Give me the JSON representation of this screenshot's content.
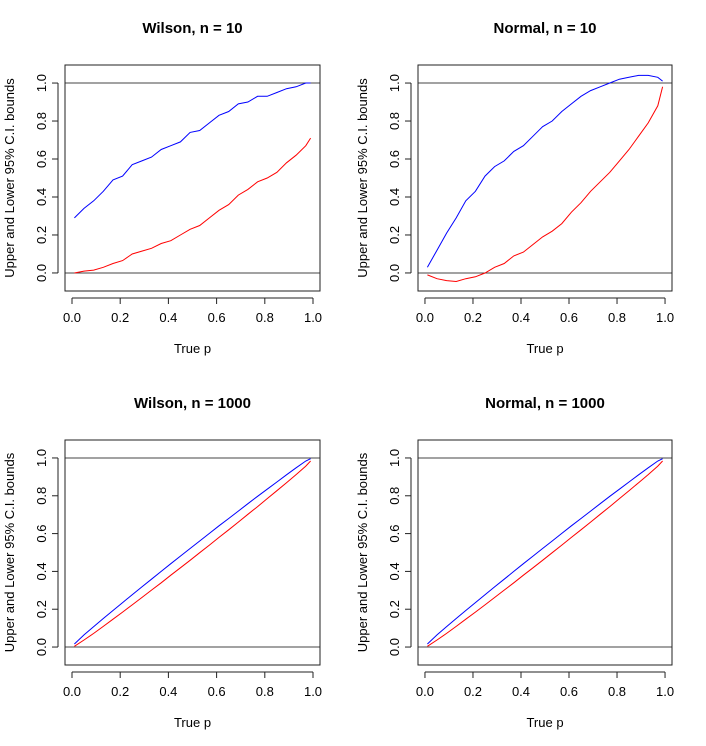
{
  "chart_data": [
    {
      "type": "line",
      "title": "Wilson, n = 10",
      "xlabel": "True p",
      "ylabel": "Upper and Lower 95% C.I. bounds",
      "xlim": [
        -0.029,
        1.029
      ],
      "ylim": [
        -0.095,
        1.095
      ],
      "xticks": [
        "0.0",
        "0.2",
        "0.4",
        "0.6",
        "0.8",
        "1.0"
      ],
      "yticks": [
        "0.0",
        "0.2",
        "0.4",
        "0.6",
        "0.8",
        "1.0"
      ],
      "hlines": [
        0,
        1
      ],
      "grid": false,
      "x": [
        0.01,
        0.05,
        0.09,
        0.13,
        0.17,
        0.21,
        0.25,
        0.29,
        0.33,
        0.37,
        0.41,
        0.45,
        0.49,
        0.53,
        0.57,
        0.61,
        0.65,
        0.69,
        0.73,
        0.77,
        0.81,
        0.85,
        0.89,
        0.93,
        0.97,
        0.99
      ],
      "series": [
        {
          "color": "#0000ff",
          "values": [
            0.29,
            0.34,
            0.38,
            0.43,
            0.49,
            0.51,
            0.57,
            0.59,
            0.61,
            0.65,
            0.67,
            0.69,
            0.74,
            0.75,
            0.79,
            0.83,
            0.85,
            0.89,
            0.9,
            0.93,
            0.93,
            0.95,
            0.97,
            0.98,
            1.0,
            1.0
          ]
        },
        {
          "color": "#ff0000",
          "values": [
            0.0,
            0.01,
            0.015,
            0.03,
            0.05,
            0.065,
            0.1,
            0.115,
            0.13,
            0.155,
            0.17,
            0.2,
            0.23,
            0.25,
            0.29,
            0.33,
            0.36,
            0.41,
            0.44,
            0.48,
            0.5,
            0.53,
            0.58,
            0.62,
            0.67,
            0.71
          ]
        }
      ]
    },
    {
      "type": "line",
      "title": "Normal, n = 10",
      "xlabel": "True p",
      "ylabel": "Upper and Lower 95% C.I. bounds",
      "xlim": [
        -0.029,
        1.029
      ],
      "ylim": [
        -0.095,
        1.095
      ],
      "xticks": [
        "0.0",
        "0.2",
        "0.4",
        "0.6",
        "0.8",
        "1.0"
      ],
      "yticks": [
        "0.0",
        "0.2",
        "0.4",
        "0.6",
        "0.8",
        "1.0"
      ],
      "hlines": [
        0,
        1
      ],
      "grid": false,
      "x": [
        0.01,
        0.05,
        0.09,
        0.13,
        0.17,
        0.21,
        0.25,
        0.29,
        0.33,
        0.37,
        0.41,
        0.45,
        0.49,
        0.53,
        0.57,
        0.61,
        0.65,
        0.69,
        0.73,
        0.77,
        0.81,
        0.85,
        0.89,
        0.93,
        0.97,
        0.99
      ],
      "series": [
        {
          "color": "#0000ff",
          "values": [
            0.03,
            0.12,
            0.21,
            0.29,
            0.38,
            0.43,
            0.51,
            0.56,
            0.59,
            0.64,
            0.67,
            0.72,
            0.77,
            0.8,
            0.85,
            0.89,
            0.93,
            0.96,
            0.98,
            1.0,
            1.02,
            1.03,
            1.04,
            1.04,
            1.03,
            1.01
          ]
        },
        {
          "color": "#ff0000",
          "values": [
            -0.01,
            -0.03,
            -0.04,
            -0.045,
            -0.03,
            -0.02,
            0.0,
            0.03,
            0.05,
            0.09,
            0.11,
            0.15,
            0.19,
            0.22,
            0.26,
            0.32,
            0.37,
            0.43,
            0.48,
            0.53,
            0.59,
            0.65,
            0.72,
            0.79,
            0.88,
            0.98
          ]
        }
      ]
    },
    {
      "type": "line",
      "title": "Wilson, n = 1000",
      "xlabel": "True p",
      "ylabel": "Upper and Lower 95% C.I. bounds",
      "xlim": [
        -0.029,
        1.029
      ],
      "ylim": [
        -0.095,
        1.095
      ],
      "xticks": [
        "0.0",
        "0.2",
        "0.4",
        "0.6",
        "0.8",
        "1.0"
      ],
      "yticks": [
        "0.0",
        "0.2",
        "0.4",
        "0.6",
        "0.8",
        "1.0"
      ],
      "hlines": [
        0,
        1
      ],
      "grid": false,
      "x": [
        0.01,
        0.05,
        0.09,
        0.13,
        0.17,
        0.21,
        0.25,
        0.29,
        0.33,
        0.37,
        0.41,
        0.45,
        0.49,
        0.53,
        0.57,
        0.61,
        0.65,
        0.69,
        0.73,
        0.77,
        0.81,
        0.85,
        0.89,
        0.93,
        0.97,
        0.99
      ],
      "series": [
        {
          "color": "#0000ff",
          "values": [
            0.016,
            0.064,
            0.108,
            0.151,
            0.193,
            0.235,
            0.277,
            0.318,
            0.359,
            0.4,
            0.441,
            0.481,
            0.521,
            0.561,
            0.601,
            0.641,
            0.68,
            0.719,
            0.758,
            0.797,
            0.835,
            0.873,
            0.911,
            0.948,
            0.984,
            0.996
          ]
        },
        {
          "color": "#ff0000",
          "values": [
            0.004,
            0.037,
            0.072,
            0.109,
            0.147,
            0.185,
            0.223,
            0.262,
            0.301,
            0.34,
            0.38,
            0.419,
            0.459,
            0.499,
            0.539,
            0.58,
            0.62,
            0.661,
            0.702,
            0.743,
            0.785,
            0.827,
            0.869,
            0.912,
            0.957,
            0.984
          ]
        }
      ]
    },
    {
      "type": "line",
      "title": "Normal, n = 1000",
      "xlabel": "True p",
      "ylabel": "Upper and Lower 95% C.I. bounds",
      "xlim": [
        -0.029,
        1.029
      ],
      "ylim": [
        -0.095,
        1.095
      ],
      "xticks": [
        "0.0",
        "0.2",
        "0.4",
        "0.6",
        "0.8",
        "1.0"
      ],
      "yticks": [
        "0.0",
        "0.2",
        "0.4",
        "0.6",
        "0.8",
        "1.0"
      ],
      "hlines": [
        0,
        1
      ],
      "grid": false,
      "x": [
        0.01,
        0.05,
        0.09,
        0.13,
        0.17,
        0.21,
        0.25,
        0.29,
        0.33,
        0.37,
        0.41,
        0.45,
        0.49,
        0.53,
        0.57,
        0.61,
        0.65,
        0.69,
        0.73,
        0.77,
        0.81,
        0.85,
        0.89,
        0.93,
        0.97,
        0.99
      ],
      "series": [
        {
          "color": "#0000ff",
          "values": [
            0.016,
            0.064,
            0.108,
            0.151,
            0.193,
            0.235,
            0.277,
            0.318,
            0.359,
            0.4,
            0.441,
            0.481,
            0.521,
            0.561,
            0.601,
            0.641,
            0.68,
            0.719,
            0.758,
            0.797,
            0.835,
            0.873,
            0.911,
            0.948,
            0.984,
            0.996
          ]
        },
        {
          "color": "#ff0000",
          "values": [
            0.004,
            0.037,
            0.072,
            0.109,
            0.147,
            0.185,
            0.223,
            0.262,
            0.301,
            0.34,
            0.38,
            0.419,
            0.459,
            0.499,
            0.539,
            0.58,
            0.62,
            0.661,
            0.702,
            0.743,
            0.785,
            0.827,
            0.869,
            0.912,
            0.957,
            0.984
          ]
        }
      ]
    }
  ]
}
